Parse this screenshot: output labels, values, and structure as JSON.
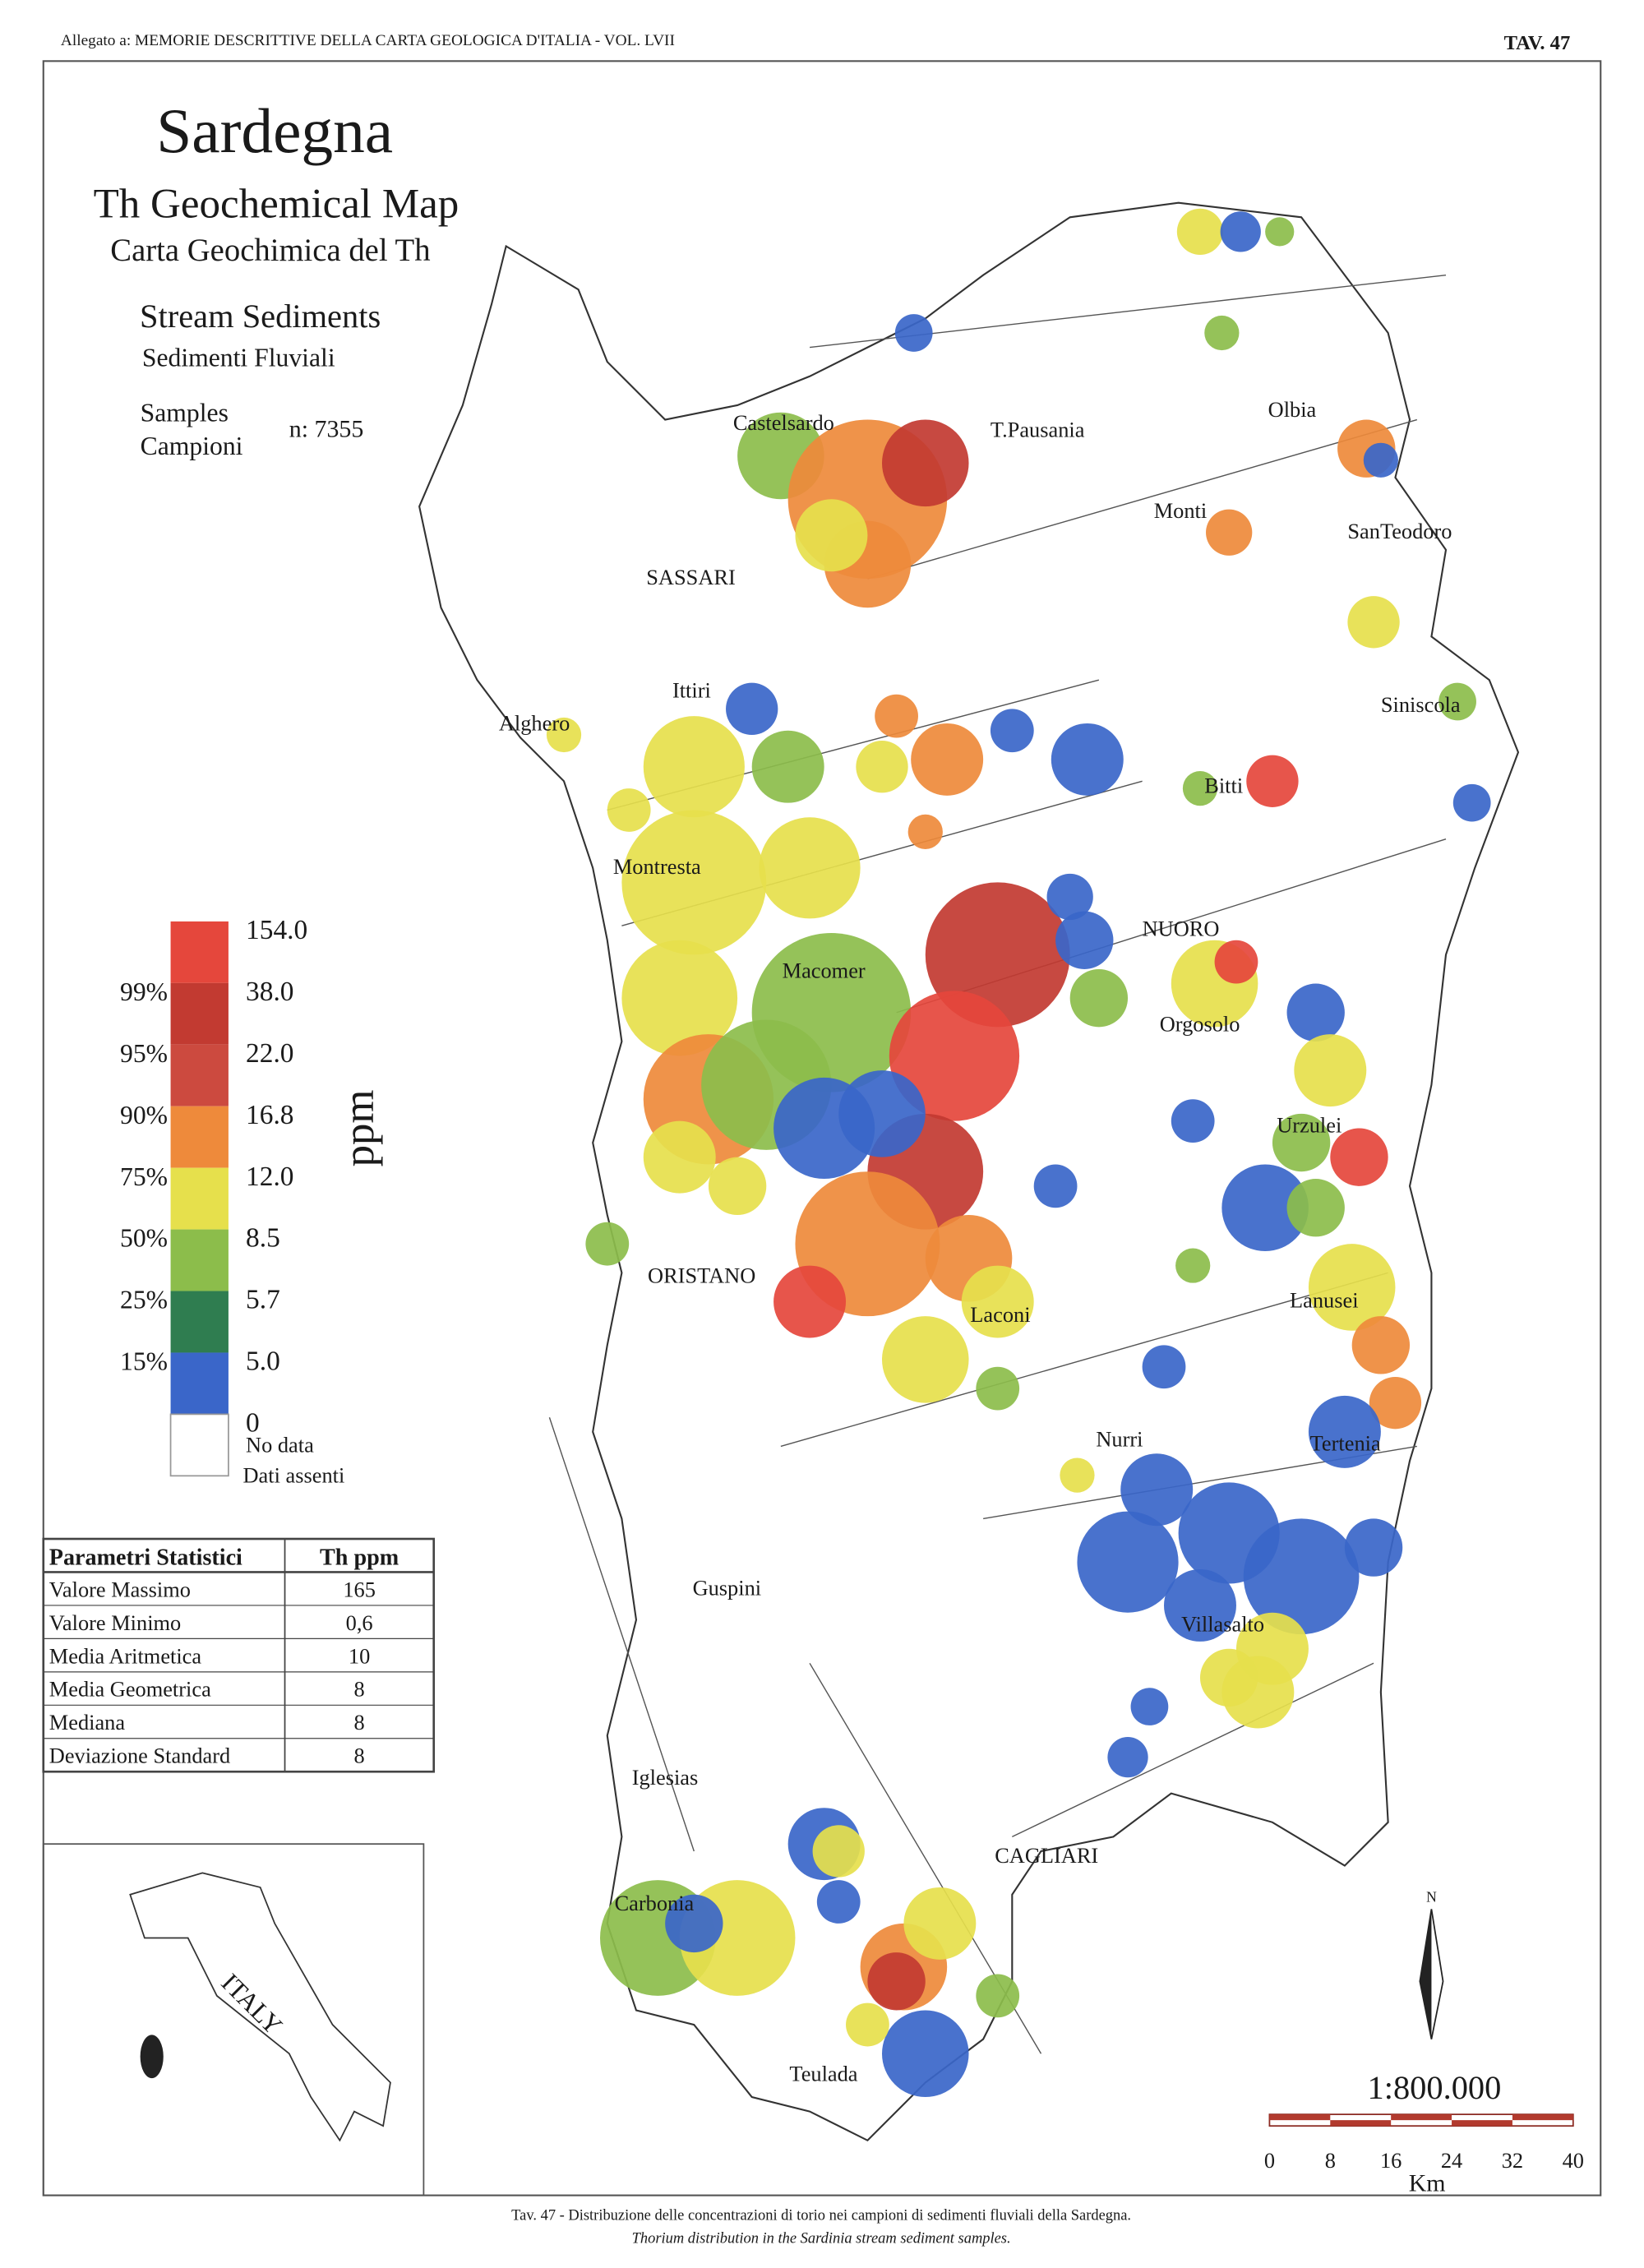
{
  "header": {
    "left": "Allegato a: MEMORIE DESCRITTIVE DELLA CARTA GEOLOGICA D'ITALIA - VOL. LVII",
    "right": "TAV. 47"
  },
  "title": {
    "region": "Sardegna",
    "map_en": "Th Geochemical Map",
    "map_it": "Carta Geochimica del Th",
    "media_en": "Stream Sediments",
    "media_it": "Sedimenti Fluviali",
    "samples_en": "Samples",
    "samples_it": "Campioni",
    "count": "n: 7355"
  },
  "legend": {
    "values": [
      "154.0",
      "38.0",
      "22.0",
      "16.8",
      "12.0",
      "8.5",
      "5.7",
      "5.0",
      "0"
    ],
    "percentiles": [
      "99%",
      "95%",
      "90%",
      "75%",
      "50%",
      "25%",
      "15%"
    ],
    "colors": [
      "#e5473c",
      "#c23a31",
      "#cc4a3f",
      "#ee8a3b",
      "#e6e04c",
      "#8cbd4b",
      "#2f7d50",
      "#3a66c9",
      "#ffffff"
    ],
    "no_data_en": "No data",
    "no_data_it": "Dati assenti",
    "unit": "ppm"
  },
  "stats": {
    "header": [
      "Parametri Statistici",
      "Th  ppm"
    ],
    "rows": [
      [
        "Valore Massimo",
        "165"
      ],
      [
        "Valore Minimo",
        "0,6"
      ],
      [
        "Media Aritmetica",
        "10"
      ],
      [
        "Media Geometrica",
        "8"
      ],
      [
        "Mediana",
        "8"
      ],
      [
        "Deviazione Standard",
        "8"
      ]
    ]
  },
  "inset": {
    "label": "ITALY"
  },
  "places": [
    "Castelsardo",
    "T.Pausania",
    "Olbia",
    "Monti",
    "SanTeodoro",
    "SASSARI",
    "Ittiri",
    "Alghero",
    "Siniscola",
    "Bitti",
    "Montresta",
    "NUORO",
    "Macomer",
    "Orgosolo",
    "Urzulei",
    "ORISTANO",
    "Laconi",
    "Lanusei",
    "Nurri",
    "Tertenia",
    "Guspini",
    "Villasalto",
    "Iglesias",
    "CAGLIARI",
    "Carbonia",
    "Teulada"
  ],
  "scale": {
    "ratio": "1:800.000",
    "ticks": [
      "0",
      "8",
      "16",
      "24",
      "32",
      "40"
    ],
    "unit": "Km",
    "north": "N"
  },
  "caption": {
    "italian": "Tav. 47 - Distribuzione delle concentrazioni di torio nei campioni di sedimenti fluviali della Sardegna.",
    "english": "Thorium distribution in the Sardinia stream sediment samples."
  }
}
